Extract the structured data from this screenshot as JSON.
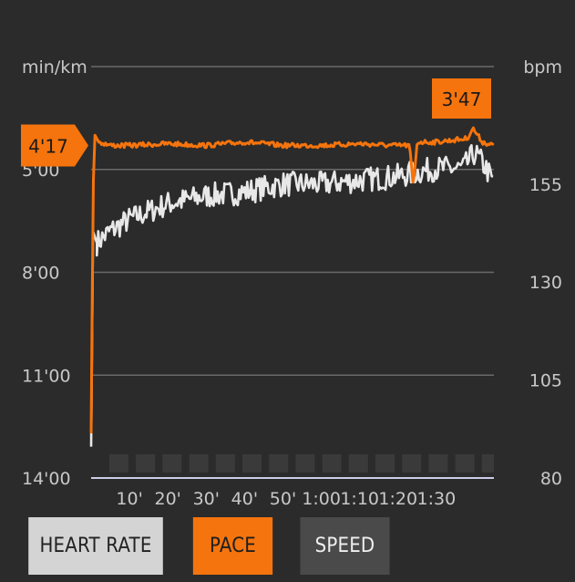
{
  "chart_data": {
    "type": "line",
    "left_axis_label": "min/km",
    "right_axis_label": "bpm",
    "left_ticks": [
      "5'00",
      "8'00",
      "11'00",
      "14'00"
    ],
    "left_tick_values": [
      5,
      8,
      11,
      14
    ],
    "right_ticks": [
      "155",
      "130",
      "105",
      "80"
    ],
    "right_tick_values": [
      155,
      130,
      105,
      80
    ],
    "y_left_range_min_per_km": [
      2,
      14
    ],
    "y_right_range_bpm": [
      80,
      185
    ],
    "x_range_min": [
      0,
      105
    ],
    "x_ticks": [
      "10'",
      "20'",
      "30'",
      "40'",
      "50'",
      "1:00",
      "1:10",
      "1:20",
      "1:30"
    ],
    "x_tick_values": [
      10,
      20,
      30,
      40,
      50,
      60,
      70,
      80,
      90
    ],
    "grid": true,
    "series": [
      {
        "name": "PACE",
        "axis": "left",
        "color": "#f5740d",
        "key_points": [
          [
            0.0,
            12.7
          ],
          [
            0.3,
            8.5
          ],
          [
            0.6,
            5.3
          ],
          [
            1.0,
            4.0
          ],
          [
            2.0,
            4.2
          ],
          [
            5.0,
            4.3
          ],
          [
            10.0,
            4.3
          ],
          [
            20.0,
            4.25
          ],
          [
            30.0,
            4.3
          ],
          [
            40.0,
            4.2
          ],
          [
            50.0,
            4.3
          ],
          [
            60.0,
            4.3
          ],
          [
            70.0,
            4.25
          ],
          [
            78.0,
            4.3
          ],
          [
            83.0,
            4.3
          ],
          [
            84.0,
            5.5
          ],
          [
            85.0,
            4.2
          ],
          [
            90.0,
            4.2
          ],
          [
            98.0,
            4.1
          ],
          [
            99.5,
            3.8
          ],
          [
            102.0,
            4.2
          ],
          [
            105.0,
            4.3
          ]
        ]
      },
      {
        "name": "HEART RATE",
        "axis": "right",
        "color": "#e8e8e8",
        "key_points": [
          [
            0.0,
            88
          ],
          [
            0.5,
            143
          ],
          [
            1.5,
            140
          ],
          [
            5.0,
            143
          ],
          [
            10.0,
            146
          ],
          [
            20.0,
            150
          ],
          [
            30.0,
            152
          ],
          [
            40.0,
            153
          ],
          [
            50.0,
            155
          ],
          [
            60.0,
            155
          ],
          [
            70.0,
            156
          ],
          [
            80.0,
            157
          ],
          [
            90.0,
            159
          ],
          [
            97.0,
            159
          ],
          [
            100.0,
            163
          ],
          [
            103.0,
            159
          ],
          [
            105.0,
            155
          ]
        ]
      }
    ],
    "markers": {
      "start_label": "4'17",
      "peak_label": "3'47"
    }
  },
  "tabs": {
    "heart_rate": "HEART RATE",
    "pace": "PACE",
    "speed": "SPEED"
  },
  "colors": {
    "background": "#2b2b2b",
    "pace": "#f5740d",
    "heart_rate": "#e8e8e8",
    "grid": "#6a6a6a",
    "axis_text": "#c8c8c8"
  }
}
